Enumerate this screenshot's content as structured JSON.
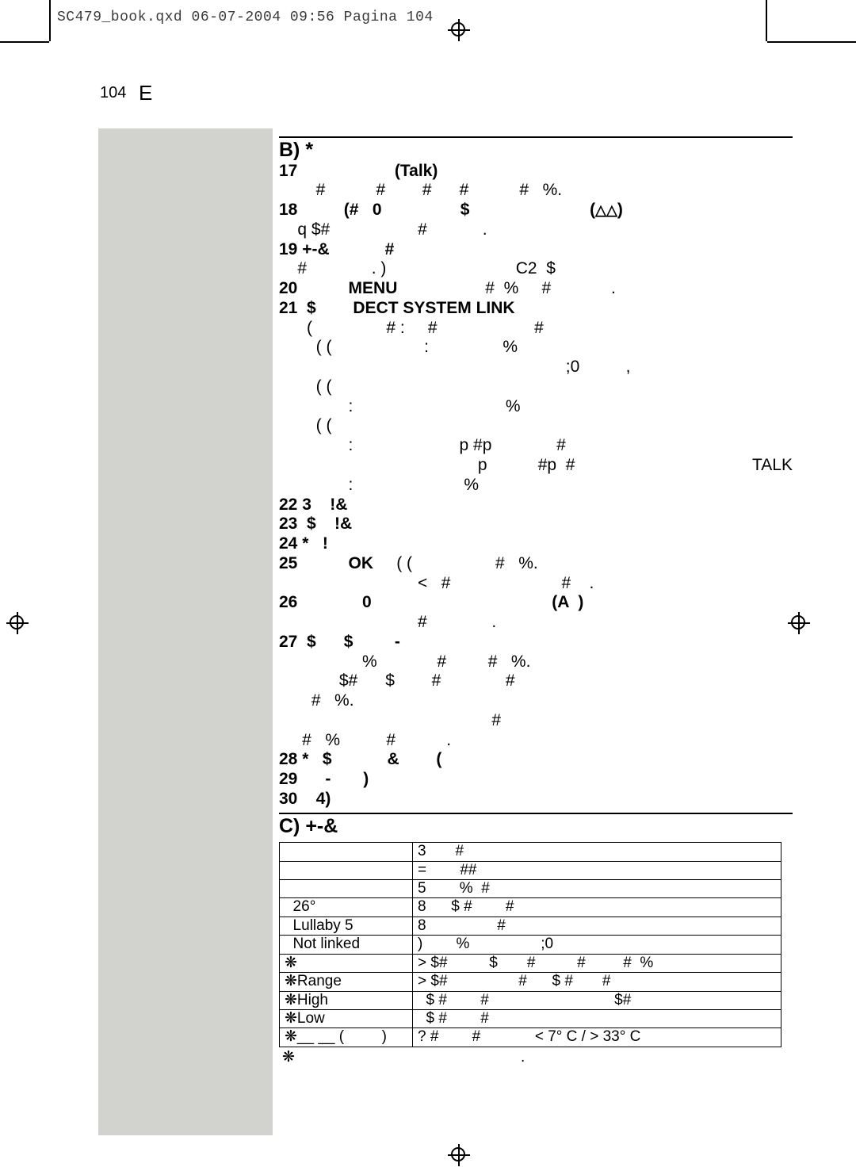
{
  "header_line": "SC479_book.qxd  06-07-2004  09:56  Pagina 104",
  "page_number": "104",
  "page_letter": "E",
  "sections": {
    "b_title": "B) *",
    "c_title": "C) +-&"
  },
  "lines": {
    "l17": "17                     (Talk)",
    "l17b": "        #           #        #      #           #   %.",
    "l18": "18          (#   0                 $                          (",
    "l18_icons": "△△",
    "l18_close": ")",
    "l18b": "    q $#                   #            .",
    "l19": "19 +-&            #",
    "l19b": "    #              . )                            C2  $",
    "l20a": "20           ",
    "l20menu": "MENU",
    "l20b": "                   #  %     #             .",
    "l21a": "21  $        ",
    "l21link": "DECT SYSTEM LINK",
    "l21b1": "      (                # :     #                     #",
    "l21b2": "        ( (                    :                %",
    "l21b3": "                                                              ;0          ,",
    "l21b4": "        ( (",
    "l21b5": "               :                                 %",
    "l21b6": "        ( (",
    "l21b7": "               :                       p #p              #",
    "l21b8": "                                           p           #p  #",
    "l21talk": "TALK",
    "l21b9": "               :                        %",
    "l22": "22 3    !&",
    "l23": "23  $    !&",
    "l24": "24 *   !",
    "l25a": "25           ",
    "l25ok": "OK",
    "l25b": "     ( (                  #   %.",
    "l25c": "                              <   #                        #    .",
    "l26": "26              0                                       (A  )",
    "l26b": "                              #              .",
    "l27": "27  $      $         -",
    "l27b": "                  %             #         #   %.",
    "l27c": "             $#      $        #              #",
    "l27d": "       #   %.",
    "l27e": "                                              #",
    "l27f": "     #   %          #           .",
    "l28": "28 *   $            &        (",
    "l29": "29      -       )",
    "l30": "30    4)"
  },
  "table_rows": [
    {
      "c1": "",
      "c2": "3       #"
    },
    {
      "c1": "",
      "c2": "=        ##"
    },
    {
      "c1": "",
      "c2": "5        %  #"
    },
    {
      "c1": "  26°",
      "c2": "8      $ #        #"
    },
    {
      "c1": "  Lullaby 5",
      "c2": "8                 #"
    },
    {
      "c1": "  Not linked",
      "c2": ")        %                 ;0"
    },
    {
      "c1": "❋",
      "c2": "> $#          $       #          #         #  %"
    },
    {
      "c1": "❋Range",
      "c2": "> $#                 #      $ #       #"
    },
    {
      "c1": "❋High",
      "c2": "  $ #        #                              $#"
    },
    {
      "c1": "❋Low",
      "c2": "  $ #        #"
    },
    {
      "c1": "❋__ __ (         )",
      "c2": "? #        #             < 7° C / > 33° C"
    }
  ],
  "footnote": "❋                                                      ."
}
